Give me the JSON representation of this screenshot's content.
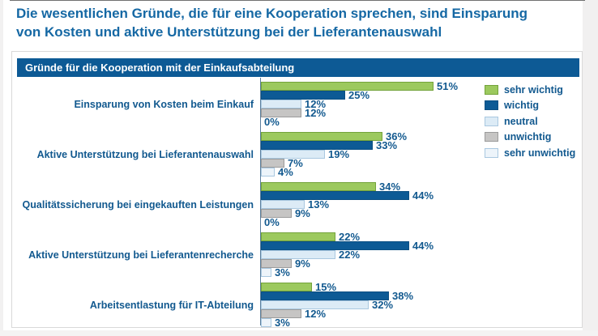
{
  "title": {
    "line1": "Die wesentlichen Gründe, die für eine Kooperation sprechen, sind Einsparung",
    "line2": "von Kosten und aktive Unterstützung bei der Lieferantenauswahl"
  },
  "panel": {
    "header": "Gründe für die Kooperation mit der Einkaufsabteilung"
  },
  "colors": {
    "title_text": "#1568a4",
    "label_text": "#12598f",
    "header_bg": "#0d5a95",
    "header_text": "#ffffff",
    "axis_line": "#5c7f9d",
    "panel_border": "#d9d9d9"
  },
  "chart_data": {
    "type": "bar",
    "orientation": "horizontal",
    "unit": "%",
    "title": "Gründe für die Kooperation mit der Einkaufsabteilung",
    "xlim": [
      0,
      55
    ],
    "grid": false,
    "value_labels": true,
    "legend_position": "top-right",
    "categories": [
      "Einsparung von Kosten beim Einkauf",
      "Aktive Unterstützung bei Lieferantenauswahl",
      "Qualitätssicherung bei eingekauften Leistungen",
      "Aktive Unterstützung bei Lieferantenrecherche",
      "Arbeitsentlastung für IT-Abteilung"
    ],
    "series": [
      {
        "name": "sehr wichtig",
        "fill": "#9cc95e",
        "border": "#73a33b",
        "values": [
          51,
          36,
          34,
          22,
          15
        ]
      },
      {
        "name": "wichtig",
        "fill": "#0d5a95",
        "border": "#0b4f83",
        "values": [
          25,
          33,
          44,
          44,
          38
        ]
      },
      {
        "name": "neutral",
        "fill": "#dcebf6",
        "border": "#a9c8e0",
        "values": [
          12,
          19,
          13,
          22,
          32
        ]
      },
      {
        "name": "unwichtig",
        "fill": "#c6c5c4",
        "border": "#9b9b9b",
        "values": [
          12,
          7,
          9,
          9,
          12
        ]
      },
      {
        "name": "sehr unwichtig",
        "fill": "#edf4fa",
        "border": "#a9c8e0",
        "values": [
          0,
          4,
          0,
          3,
          3
        ]
      }
    ]
  }
}
